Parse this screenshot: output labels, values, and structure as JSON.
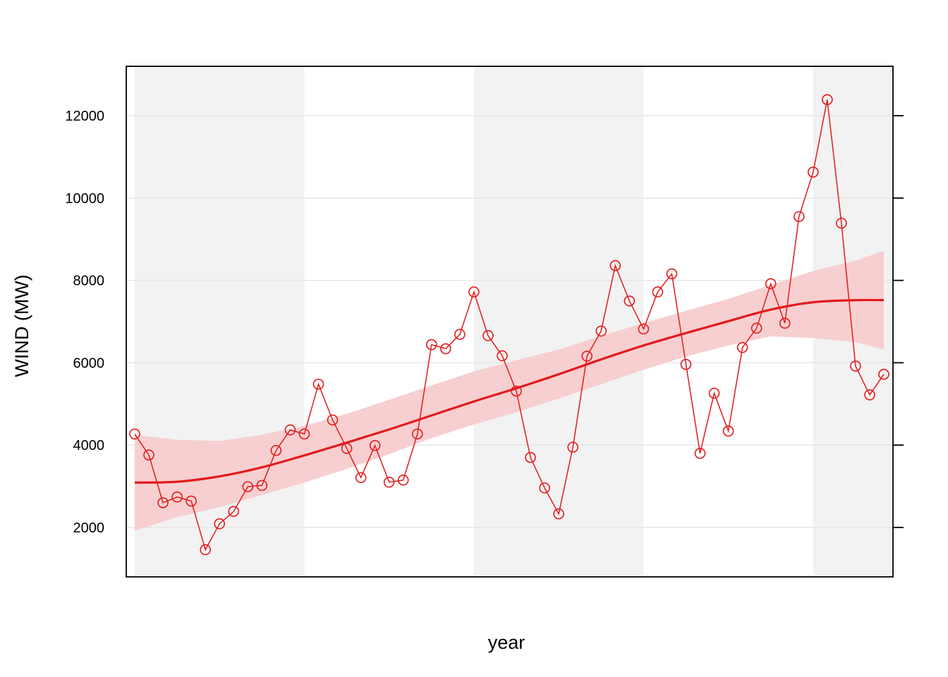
{
  "chart_data": {
    "type": "line",
    "title": "",
    "xlabel": "year",
    "ylabel": "WIND (MW)",
    "ylim": [
      800,
      13200
    ],
    "yticks": [
      2000,
      4000,
      6000,
      8000,
      10000,
      12000
    ],
    "grid": true,
    "background_bands": "alternating grey vertical bands",
    "colors": {
      "series": "#e41a1c",
      "band_fill": "#f2f2f2",
      "ci_fill": "#f7cfd0",
      "grid": "#e6e6e6",
      "frame": "#000000"
    },
    "series": [
      {
        "type": "line+points",
        "x": [
          1,
          2,
          3,
          4,
          5,
          6,
          7,
          8,
          9,
          10,
          11,
          12,
          13,
          14,
          15,
          16,
          17,
          18,
          19,
          20,
          21,
          22,
          23,
          24,
          25,
          26,
          27,
          28,
          29,
          30,
          31,
          32,
          33,
          34,
          35,
          36,
          37,
          38,
          39,
          40,
          41,
          42,
          43,
          44,
          45,
          46,
          47,
          48,
          49,
          50,
          51,
          52,
          53,
          54
        ],
        "values": [
          4270,
          3760,
          2600,
          2740,
          2640,
          1460,
          2090,
          2390,
          2990,
          3020,
          3870,
          4370,
          4270,
          5480,
          4610,
          3920,
          3210,
          3990,
          3100,
          3150,
          4270,
          6440,
          6340,
          6690,
          7720,
          6660,
          6170,
          5310,
          3700,
          2960,
          2330,
          3950,
          6160,
          6770,
          8360,
          7500,
          6820,
          7720,
          8160,
          5960,
          3800,
          5260,
          4340,
          6370,
          6840,
          7920,
          6960,
          9550,
          10630,
          12390,
          9390,
          5920,
          5220,
          5720
        ]
      },
      {
        "type": "smooth",
        "x": [
          1,
          4,
          7,
          10,
          13,
          16,
          19,
          22,
          25,
          28,
          31,
          34,
          37,
          40,
          43,
          46,
          49,
          52,
          54
        ],
        "values": [
          3090,
          3110,
          3240,
          3460,
          3750,
          4060,
          4380,
          4720,
          5060,
          5380,
          5720,
          6080,
          6420,
          6720,
          7010,
          7290,
          7470,
          7520,
          7520
        ]
      },
      {
        "type": "confidence-band",
        "x": [
          1,
          4,
          7,
          10,
          13,
          16,
          19,
          22,
          25,
          28,
          31,
          34,
          37,
          40,
          43,
          46,
          49,
          52,
          54
        ],
        "lower": [
          1920,
          2250,
          2490,
          2790,
          3090,
          3420,
          3780,
          4170,
          4500,
          4800,
          5130,
          5480,
          5830,
          6150,
          6420,
          6640,
          6600,
          6500,
          6320
        ],
        "upper": [
          4250,
          4130,
          4100,
          4250,
          4470,
          4760,
          5100,
          5450,
          5790,
          6060,
          6320,
          6650,
          6960,
          7260,
          7550,
          7890,
          8230,
          8480,
          8720
        ]
      }
    ]
  }
}
